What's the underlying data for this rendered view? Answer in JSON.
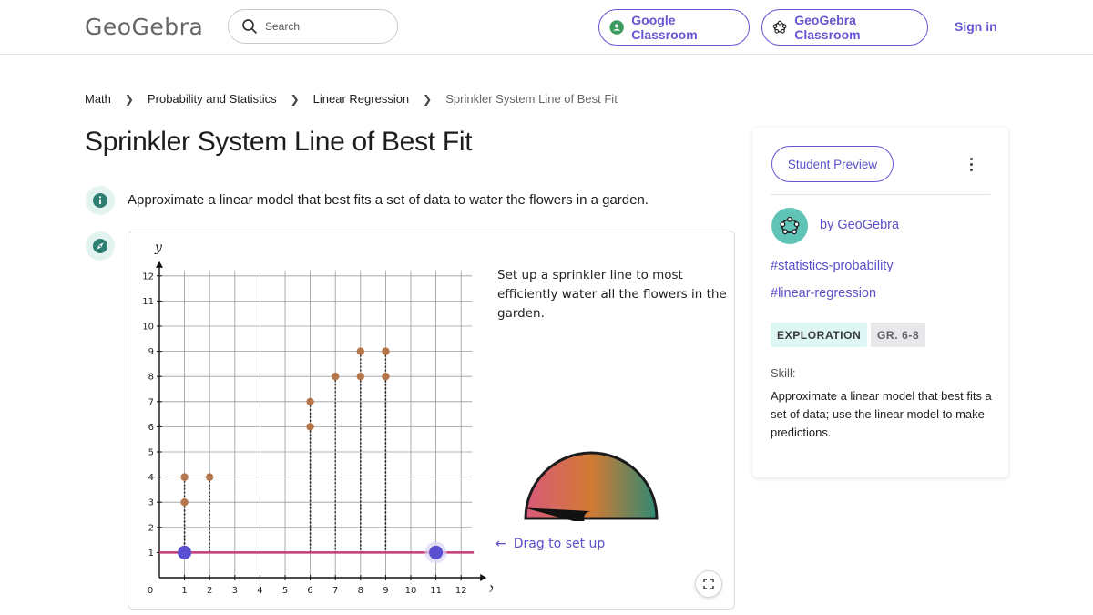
{
  "header": {
    "logo_text": "GeoGebra",
    "search_placeholder": "Search",
    "google_classroom_label": "Google Classroom",
    "geogebra_classroom_label": "GeoGebra Classroom",
    "signin_label": "Sign in"
  },
  "breadcrumb": {
    "items": [
      "Math",
      "Probability and Statistics",
      "Linear Regression",
      "Sprinkler System Line of Best Fit"
    ]
  },
  "page": {
    "title": "Sprinkler System Line of Best Fit",
    "description": "Approximate a linear model that best fits a set of data to water the flowers in a garden."
  },
  "applet": {
    "instructions": "Set up a sprinkler line to most efficiently water all the flowers in the garden.",
    "drag_hint": "Drag to set up",
    "gauge_level": 0.05,
    "axis": {
      "x_label": "x",
      "y_label": "y",
      "origin_label": "0",
      "x_ticks": [
        "1",
        "2",
        "3",
        "4",
        "5",
        "6",
        "7",
        "8",
        "9",
        "10",
        "11",
        "12"
      ],
      "y_ticks": [
        "1",
        "2",
        "3",
        "4",
        "5",
        "6",
        "7",
        "8",
        "9",
        "10",
        "11",
        "12"
      ]
    }
  },
  "chart_data": {
    "type": "scatter",
    "title": "",
    "xlabel": "x",
    "ylabel": "y",
    "xlim": [
      0,
      12
    ],
    "ylim": [
      0,
      12
    ],
    "grid": true,
    "flowers": [
      {
        "x": 1,
        "y": 3
      },
      {
        "x": 1,
        "y": 4
      },
      {
        "x": 2,
        "y": 4
      },
      {
        "x": 6,
        "y": 6
      },
      {
        "x": 6,
        "y": 7
      },
      {
        "x": 7,
        "y": 8
      },
      {
        "x": 8,
        "y": 8
      },
      {
        "x": 8,
        "y": 9
      },
      {
        "x": 9,
        "y": 8
      },
      {
        "x": 9,
        "y": 9
      }
    ],
    "sprinkler_line": {
      "y_at_x": [
        [
          0,
          1
        ],
        [
          12,
          1
        ]
      ]
    },
    "handles": [
      {
        "x": 1,
        "y": 1
      },
      {
        "x": 11,
        "y": 1
      }
    ],
    "colors": {
      "flower": "#b5754a",
      "line": "#c43a7a",
      "handle": "#5a4fd0",
      "grid": "#9a9a9a"
    }
  },
  "sidebar": {
    "preview_label": "Student Preview",
    "author": "by GeoGebra",
    "tags": [
      "#statistics-probability",
      "#linear-regression"
    ],
    "badges": [
      "EXPLORATION",
      "GR. 6-8"
    ],
    "skill_label": "Skill:",
    "skill_text": "Approximate a linear model that best fits a set of data; use the linear model to make predictions."
  },
  "colors": {
    "accent": "#6557d2",
    "teal": "#5fc4b5"
  }
}
